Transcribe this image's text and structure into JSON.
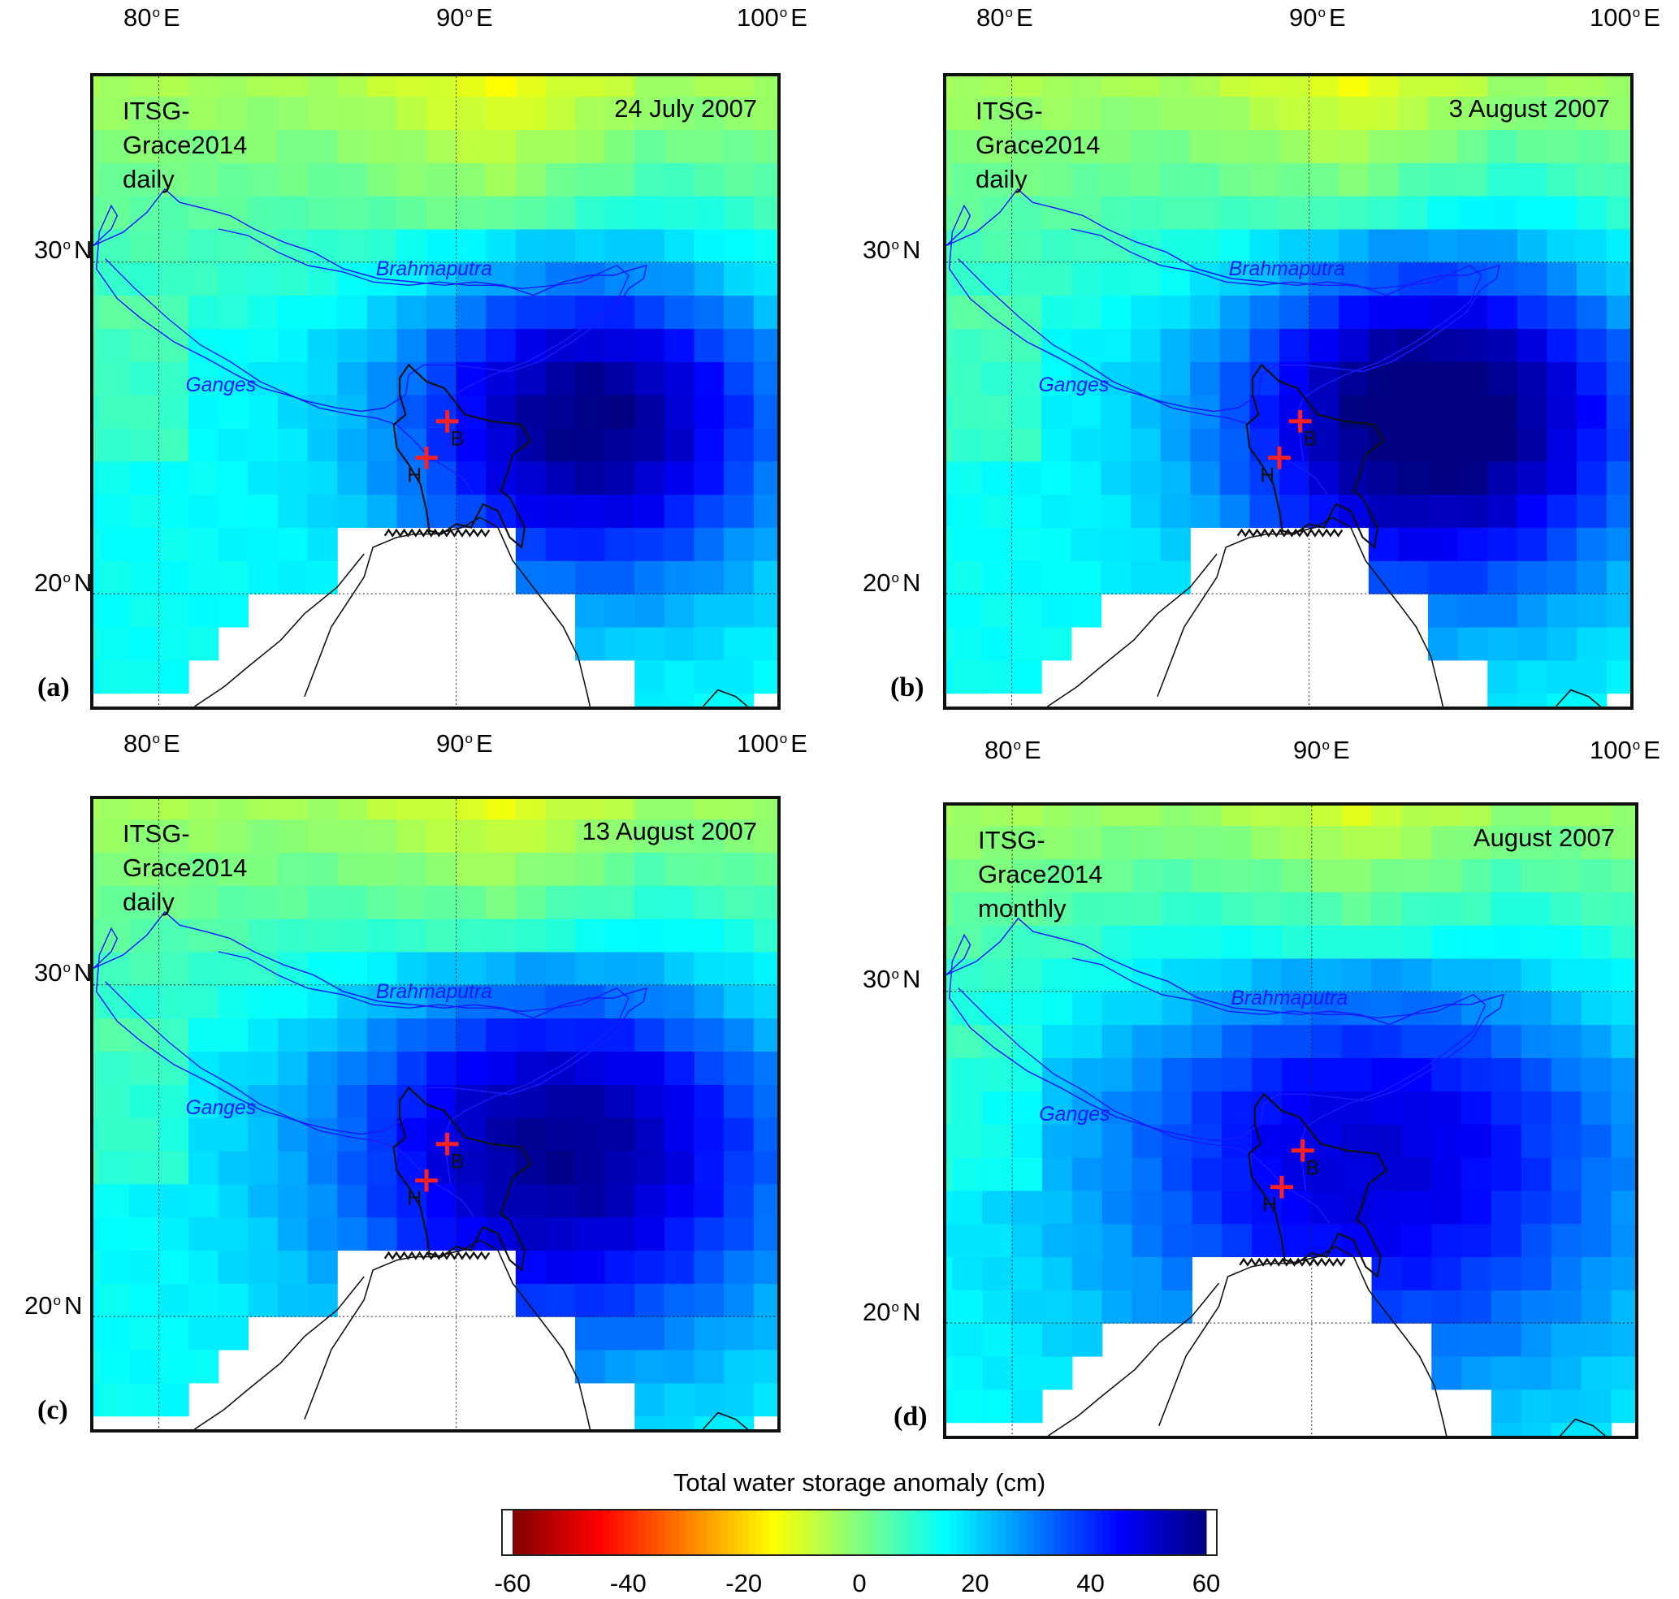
{
  "panels": [
    {
      "label": "(a)",
      "product": "ITSG-Grace2014",
      "resolution": "daily",
      "date": "24 July 2007",
      "lon_ticks": [
        "80",
        "90",
        "100"
      ],
      "lon_suffix": "E",
      "lat_ticks": [
        "30",
        "20"
      ],
      "lat_suffix": "N",
      "center_lon": 94.5,
      "center_lat": 25.2,
      "strength": 46,
      "spread": 4.6
    },
    {
      "label": "(b)",
      "product": "ITSG-Grace2014",
      "resolution": "daily",
      "date": "3 August 2007",
      "lon_ticks": [
        "80",
        "90",
        "100"
      ],
      "lon_suffix": "E",
      "lat_ticks": [
        "30",
        "20"
      ],
      "lat_suffix": "N",
      "center_lon": 94.2,
      "center_lat": 25.3,
      "strength": 52,
      "spread": 5.0
    },
    {
      "label": "(c)",
      "product": "ITSG-Grace2014",
      "resolution": "daily",
      "date": "13 August 2007",
      "lon_ticks": [
        "80",
        "90",
        "100"
      ],
      "lon_suffix": "E",
      "lat_ticks": [
        "30",
        "20"
      ],
      "lat_suffix": "N",
      "center_lon": 93.5,
      "center_lat": 25.0,
      "strength": 44,
      "spread": 5.6
    },
    {
      "label": "(d)",
      "product": "ITSG-Grace2014",
      "resolution": "monthly",
      "date": "August 2007",
      "lon_ticks": [
        "80",
        "90",
        "100"
      ],
      "lon_suffix": "E",
      "lat_ticks": [
        "30",
        "20"
      ],
      "lat_suffix": "N",
      "center_lon": 92.0,
      "center_lat": 25.0,
      "strength": 36,
      "spread": 6.5
    }
  ],
  "rivers": {
    "brahmaputra": "Brahmaputra",
    "ganges": "Ganges"
  },
  "stations": [
    {
      "id": "B",
      "lon": 89.7,
      "lat": 25.2
    },
    {
      "id": "H",
      "lon": 89.0,
      "lat": 24.1
    }
  ],
  "colorbar": {
    "title": "Total water storage anomaly (cm)",
    "ticks": [
      "-60",
      "-40",
      "-20",
      "0",
      "20",
      "40",
      "60"
    ],
    "min": -60,
    "max": 60
  },
  "colors": {
    "river": "#1a1aff",
    "station": "#ff2020",
    "grid": "#222222"
  }
}
